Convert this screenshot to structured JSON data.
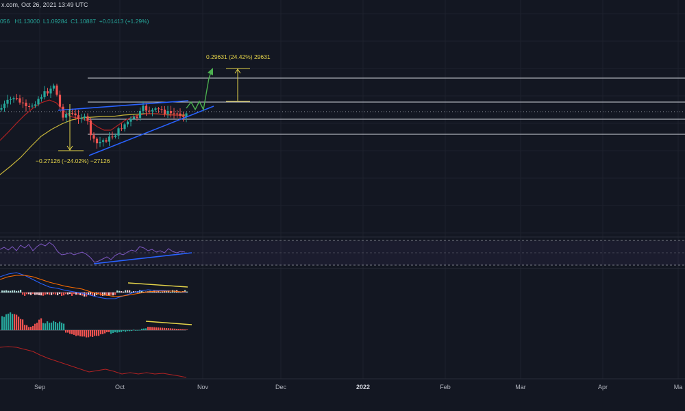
{
  "header": {
    "source_date": "x.com, Oct 26, 2021 13:49 UTC",
    "ohlc": {
      "open": "056",
      "high_label": "H",
      "high": "1.13000",
      "low_label": "L",
      "low": "1.09284",
      "close_label": "C",
      "close": "1.10887",
      "change": "+0.01413 (+1.29%)"
    }
  },
  "chart_data": {
    "type": "candlestick",
    "x_ticks": [
      "Sep",
      "Oct",
      "Nov",
      "Dec",
      "2022",
      "Feb",
      "Mar",
      "Apr",
      "Ma"
    ],
    "annotations": {
      "target_up": "0.29631 (24.42%) 29631",
      "measured_down": "−0.27126 (−24.02%) −27126"
    },
    "pattern": "ascending triangle",
    "horizontal_levels": 4,
    "indicators": [
      "RSI",
      "MACD",
      "Histogram oscillator",
      "Trend line"
    ],
    "colors": {
      "background": "#131722",
      "bull": "#26a69a",
      "bear": "#ef5350",
      "triangle": "#2962ff",
      "projection": "#4caf50",
      "measure": "#e6d54a",
      "ma_fast": "#b22222",
      "ma_slow": "#c7b53a",
      "rsi": "#7e57c2",
      "divergence": "#e6d54a",
      "levels": "#d1d4dc"
    }
  }
}
